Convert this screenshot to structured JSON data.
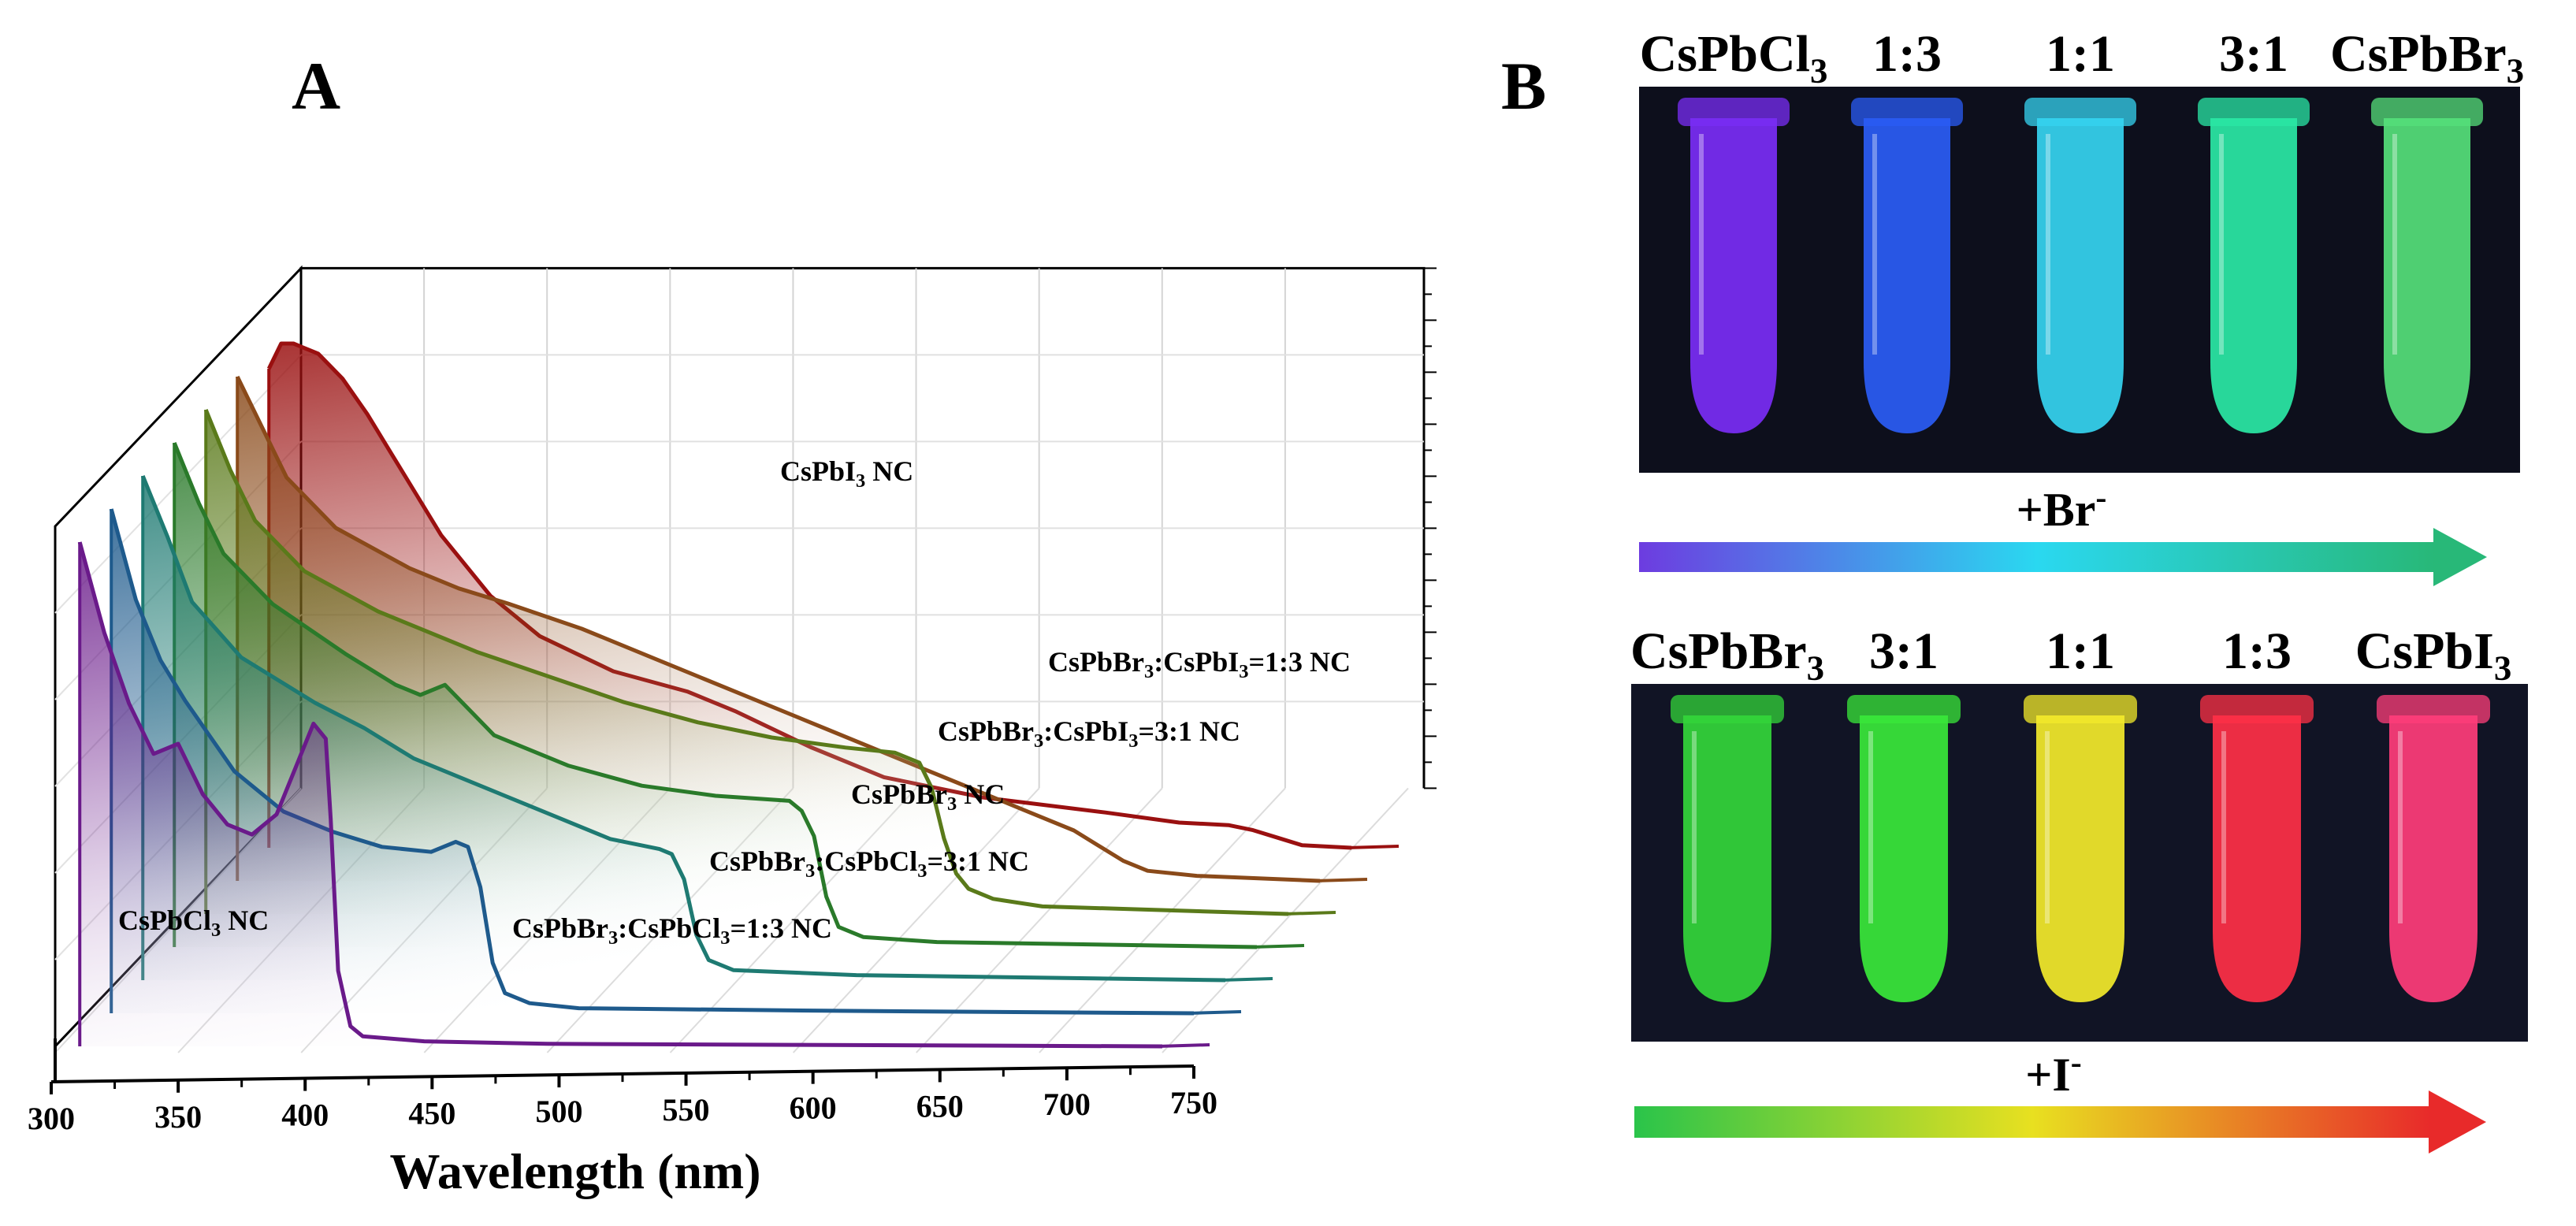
{
  "panels": {
    "a_label": "A",
    "b_label": "B"
  },
  "chart_data": {
    "type": "line",
    "variant": "3d-waterfall",
    "title": "",
    "xlabel": "Wavelength (nm)",
    "ylabel": "",
    "xlim": [
      300,
      750
    ],
    "x_ticks": [
      "300",
      "350",
      "400",
      "450",
      "500",
      "550",
      "600",
      "650",
      "700",
      "750"
    ],
    "ylim": [
      0,
      1
    ],
    "grid": true,
    "series": [
      {
        "name": "CsPbCl3 NC",
        "label": [
          "CsPbCl",
          "3",
          " NC"
        ],
        "color": "#6a1a8a",
        "x": [
          310,
          320,
          330,
          340,
          350,
          360,
          370,
          380,
          390,
          400,
          405,
          410,
          412,
          415,
          420,
          425,
          450,
          500,
          600,
          750
        ],
        "y": [
          1.0,
          0.82,
          0.68,
          0.58,
          0.6,
          0.5,
          0.44,
          0.42,
          0.46,
          0.58,
          0.64,
          0.61,
          0.45,
          0.15,
          0.04,
          0.02,
          0.01,
          0.005,
          0.003,
          0.0
        ]
      },
      {
        "name": "CsPbBr3:CsPbCl3=1:3 NC",
        "label": [
          "CsPbBr",
          "3",
          ":CsPbCl",
          "3",
          "=1:3 NC"
        ],
        "color": "#1e5a8c",
        "x": [
          310,
          320,
          330,
          340,
          350,
          360,
          380,
          400,
          420,
          440,
          450,
          455,
          460,
          465,
          470,
          480,
          500,
          600,
          750
        ],
        "y": [
          1.0,
          0.82,
          0.7,
          0.62,
          0.55,
          0.48,
          0.4,
          0.36,
          0.33,
          0.32,
          0.34,
          0.33,
          0.25,
          0.1,
          0.04,
          0.02,
          0.01,
          0.005,
          0.0
        ]
      },
      {
        "name": "CsPbBr3:CsPbCl3=3:1 NC",
        "label": [
          "CsPbBr",
          "3",
          ":CsPbCl",
          "3",
          "=3:1 NC"
        ],
        "color": "#1e7a72",
        "x": [
          310,
          320,
          330,
          350,
          380,
          400,
          420,
          450,
          480,
          500,
          520,
          525,
          530,
          535,
          540,
          550,
          600,
          750
        ],
        "y": [
          1.0,
          0.88,
          0.75,
          0.64,
          0.55,
          0.5,
          0.44,
          0.38,
          0.32,
          0.28,
          0.26,
          0.25,
          0.2,
          0.09,
          0.04,
          0.02,
          0.01,
          0.0
        ]
      },
      {
        "name": "CsPbBr3 NC",
        "label": [
          "CsPbBr",
          "3",
          " NC"
        ],
        "color": "#2a7a2a",
        "x": [
          310,
          320,
          330,
          350,
          380,
          400,
          410,
          420,
          440,
          470,
          500,
          530,
          560,
          565,
          570,
          575,
          580,
          590,
          620,
          750
        ],
        "y": [
          1.0,
          0.88,
          0.78,
          0.68,
          0.58,
          0.52,
          0.5,
          0.52,
          0.42,
          0.36,
          0.32,
          0.3,
          0.29,
          0.27,
          0.22,
          0.1,
          0.04,
          0.02,
          0.01,
          0.0
        ]
      },
      {
        "name": "CsPbBr3:CsPbI3=3:1 NC",
        "label": [
          "CsPbBr",
          "3",
          ":CsPbI",
          "3",
          "=3:1 NC"
        ],
        "color": "#5a7a1a",
        "x": [
          310,
          320,
          330,
          350,
          380,
          400,
          420,
          450,
          480,
          510,
          540,
          570,
          590,
          600,
          605,
          610,
          615,
          620,
          630,
          650,
          750
        ],
        "y": [
          1.0,
          0.88,
          0.78,
          0.68,
          0.6,
          0.56,
          0.52,
          0.47,
          0.42,
          0.38,
          0.35,
          0.33,
          0.32,
          0.3,
          0.25,
          0.15,
          0.08,
          0.05,
          0.03,
          0.015,
          0.0
        ]
      },
      {
        "name": "CsPbBr3:CsPbI3=1:3 NC",
        "label": [
          "CsPbBr",
          "3",
          ":CsPbI",
          "3",
          "=1:3 NC"
        ],
        "color": "#8a4a1a",
        "x": [
          310,
          320,
          330,
          350,
          380,
          400,
          420,
          450,
          480,
          500,
          520,
          550,
          580,
          600,
          630,
          650,
          660,
          670,
          680,
          700,
          750
        ],
        "y": [
          1.0,
          0.9,
          0.8,
          0.7,
          0.62,
          0.58,
          0.55,
          0.5,
          0.44,
          0.4,
          0.36,
          0.3,
          0.24,
          0.2,
          0.14,
          0.1,
          0.07,
          0.04,
          0.02,
          0.01,
          0.0
        ]
      },
      {
        "name": "CsPbI3 NC",
        "label": [
          "CsPbI",
          "3",
          " NC"
        ],
        "color": "#9a1010",
        "x": [
          310,
          315,
          320,
          330,
          340,
          350,
          360,
          370,
          380,
          400,
          420,
          450,
          480,
          500,
          530,
          560,
          600,
          650,
          680,
          700,
          710,
          720,
          730,
          750
        ],
        "y": [
          0.95,
          1.0,
          1.0,
          0.98,
          0.93,
          0.86,
          0.78,
          0.7,
          0.62,
          0.5,
          0.42,
          0.35,
          0.31,
          0.27,
          0.2,
          0.14,
          0.1,
          0.07,
          0.05,
          0.045,
          0.035,
          0.02,
          0.005,
          0.0
        ]
      }
    ]
  },
  "photos": {
    "top": {
      "labels": [
        [
          "CsPbCl",
          "3"
        ],
        [
          "1:3",
          ""
        ],
        [
          "1:1",
          ""
        ],
        [
          "3:1",
          ""
        ],
        [
          "CsPbBr",
          "3"
        ]
      ],
      "tube_colors": [
        "#7a2df5",
        "#2a5cf5",
        "#35d4f0",
        "#2ae8a5",
        "#55e07a"
      ],
      "arrow_label": "+Br",
      "arrow_sup": "-",
      "arrow_colors": [
        "#6d3ce0",
        "#2ad8f0",
        "#28b878"
      ]
    },
    "bottom": {
      "labels": [
        [
          "CsPbBr",
          "3"
        ],
        [
          "3:1",
          ""
        ],
        [
          "1:1",
          ""
        ],
        [
          "1:3",
          ""
        ],
        [
          "CsPbI",
          "3"
        ]
      ],
      "tube_colors": [
        "#33d63a",
        "#39e83a",
        "#f3ea2a",
        "#ff3046",
        "#ff3d7a"
      ],
      "arrow_label": "+I",
      "arrow_sup": "-",
      "arrow_colors": [
        "#2ac44a",
        "#e8e020",
        "#e82a2a"
      ]
    }
  }
}
